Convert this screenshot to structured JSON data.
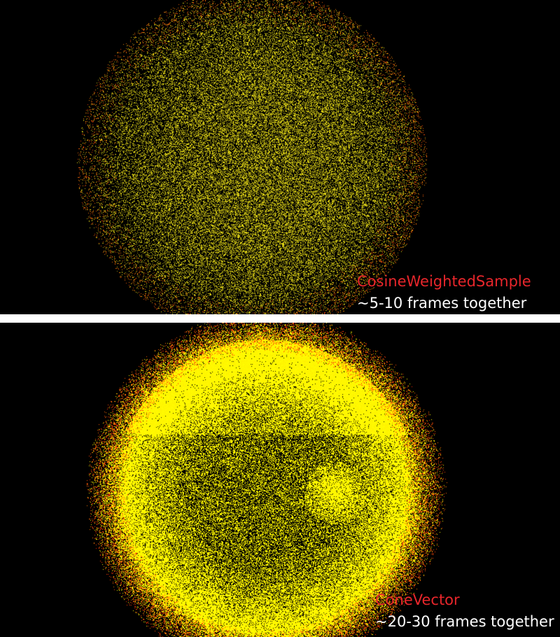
{
  "panels": [
    {
      "method_label": "CosineWeightedSample",
      "note": "~5-10 frames together"
    },
    {
      "method_label": "ConeVector",
      "note": "~20-30 frames together"
    }
  ],
  "colors": {
    "background": "#000000",
    "separator": "#ffffff",
    "label_red": "#e8262b",
    "label_white": "#ffffff",
    "sample_yellow": "#ffff00",
    "sample_red": "#ff3010"
  }
}
